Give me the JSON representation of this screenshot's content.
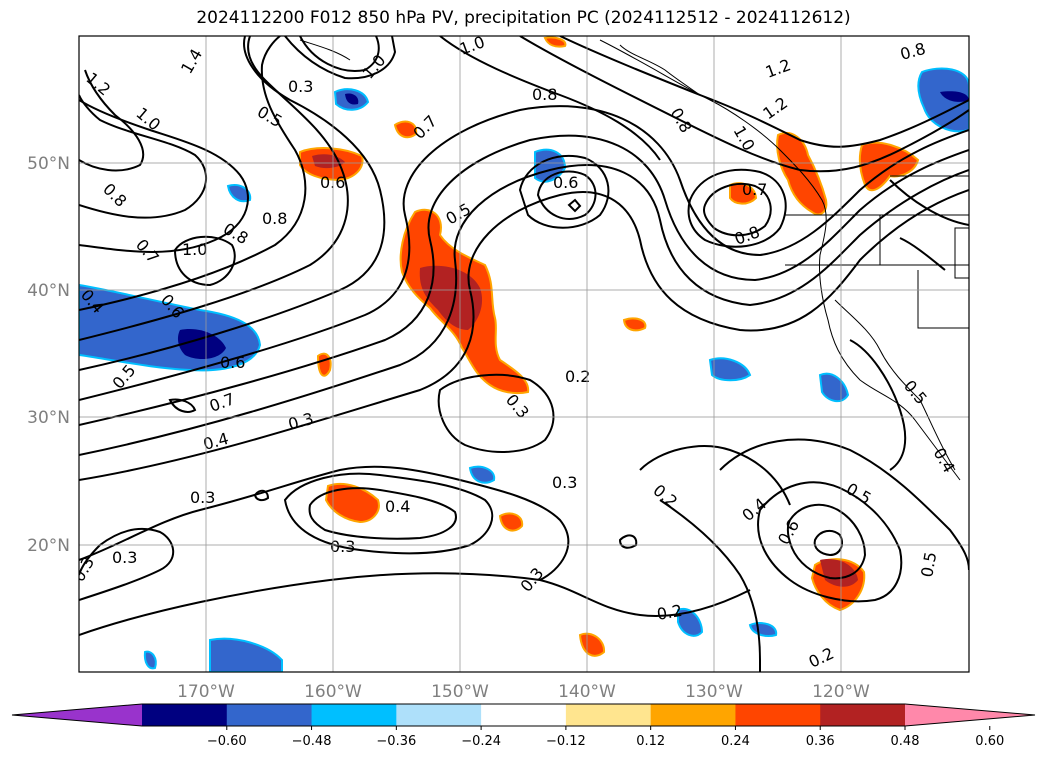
{
  "title": "2024112200 F012 850 hPa PV, precipitation PC (2024112512 - 2024112612)",
  "map": {
    "latitude_labels": [
      "50°N",
      "40°N",
      "30°N",
      "20°N"
    ],
    "longitude_labels": [
      "170°W",
      "160°W",
      "150°W",
      "140°W",
      "130°W",
      "120°W"
    ],
    "gridlines": true
  },
  "pv_contour_labels": [
    "1.2",
    "1.4",
    "1.0",
    "0.8",
    "0.6",
    "0.3",
    "0.5",
    "0.7",
    "0.4",
    "0.2"
  ],
  "colorbar": {
    "ticks": [
      "−0.60",
      "−0.48",
      "−0.36",
      "−0.24",
      "−0.12",
      "0.12",
      "0.24",
      "0.36",
      "0.48",
      "0.60"
    ],
    "colors": [
      "#9933cc",
      "#000080",
      "#3366cc",
      "#00bfff",
      "#aee0fa",
      "#ffffff",
      "#ffe58f",
      "#ffa500",
      "#ff4500",
      "#b22222",
      "#ff88aa"
    ],
    "extend": "both"
  }
}
